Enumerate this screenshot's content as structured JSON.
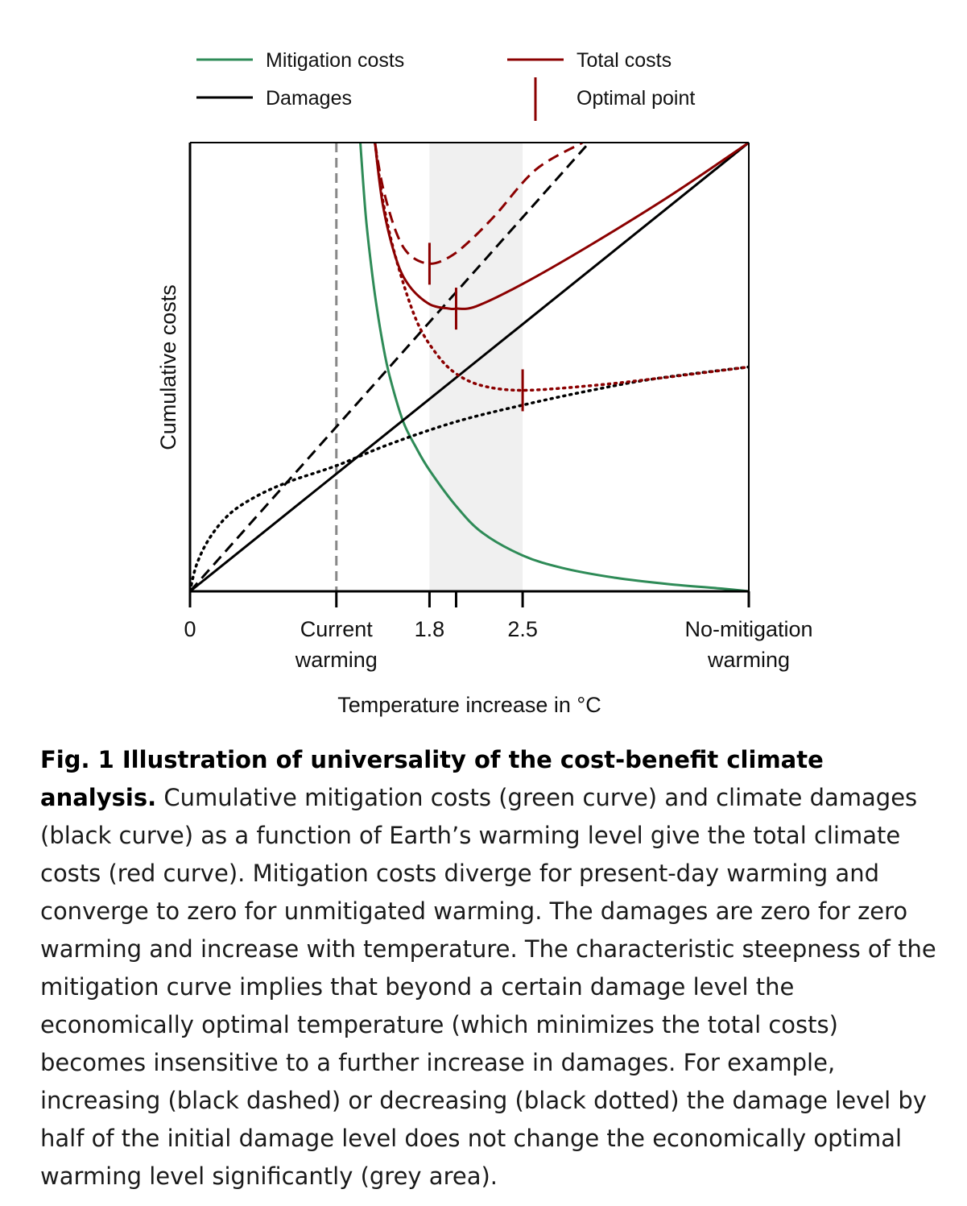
{
  "legend": {
    "mitigation": "Mitigation costs",
    "damages": "Damages",
    "total": "Total costs",
    "optimal": "Optimal point"
  },
  "chart_data": {
    "type": "line",
    "xlabel": "Temperature increase in °C",
    "ylabel": "Cumulative costs",
    "x_ticks": [
      {
        "x": 0,
        "label": "0"
      },
      {
        "x": 1.1,
        "label": "Current\nwarming"
      },
      {
        "x": 1.8,
        "label": "1.8"
      },
      {
        "x": 2.0,
        "label": ""
      },
      {
        "x": 2.5,
        "label": "2.5"
      },
      {
        "x": 4.2,
        "label": "No-mitigation\nwarming"
      }
    ],
    "xlim": [
      0,
      4.2
    ],
    "ylim": [
      0,
      1
    ],
    "current_warming": 1.1,
    "no_mitigation_warming": 4.2,
    "grey_band": [
      1.8,
      2.5
    ],
    "colors": {
      "mitigation": "#2e8b57",
      "damages": "#000000",
      "total": "#8b0000",
      "current_line": "#888888",
      "band": "#f0f0f0"
    },
    "series": [
      {
        "name": "Mitigation costs",
        "style": "solid",
        "color": "#2e8b57",
        "x": [
          1.28,
          1.32,
          1.36,
          1.4,
          1.45,
          1.5,
          1.6,
          1.7,
          1.8,
          2.0,
          2.2,
          2.5,
          2.8,
          3.2,
          3.6,
          4.0,
          4.2
        ],
        "y": [
          1.0,
          0.84,
          0.73,
          0.64,
          0.55,
          0.48,
          0.38,
          0.32,
          0.27,
          0.19,
          0.13,
          0.08,
          0.052,
          0.03,
          0.016,
          0.006,
          0.0
        ]
      },
      {
        "name": "Damages",
        "style": "solid",
        "color": "#000000",
        "x": [
          0,
          4.2
        ],
        "y": [
          0,
          1.0
        ]
      },
      {
        "style": "dashed",
        "color": "#000000",
        "x": [
          0,
          3.0
        ],
        "y": [
          0,
          1.0
        ]
      },
      {
        "style": "dotted",
        "color": "#000000",
        "x": [
          0.0,
          0.05,
          0.15,
          0.3,
          0.5,
          0.75,
          1.1,
          1.5,
          2.0,
          2.5,
          3.0,
          3.5,
          4.2
        ],
        "y": [
          0.0,
          0.06,
          0.12,
          0.173,
          0.212,
          0.245,
          0.28,
          0.328,
          0.378,
          0.415,
          0.447,
          0.474,
          0.5
        ]
      },
      {
        "name": "Total costs",
        "style": "solid",
        "color": "#8b0000",
        "x": [
          1.39,
          1.45,
          1.55,
          1.65,
          1.8,
          1.95,
          2.0,
          2.15,
          2.5,
          3.0,
          3.6,
          4.2
        ],
        "y": [
          1.0,
          0.86,
          0.74,
          0.68,
          0.64,
          0.63,
          0.63,
          0.635,
          0.685,
          0.77,
          0.88,
          1.0
        ]
      },
      {
        "style": "dashed",
        "color": "#8b0000",
        "x": [
          1.39,
          1.45,
          1.55,
          1.65,
          1.8,
          1.95,
          2.1,
          2.3,
          2.6,
          2.95
        ],
        "y": [
          1.0,
          0.9,
          0.8,
          0.75,
          0.73,
          0.745,
          0.78,
          0.84,
          0.94,
          1.0
        ]
      },
      {
        "style": "dotted",
        "color": "#8b0000",
        "x": [
          1.39,
          1.45,
          1.55,
          1.7,
          1.85,
          2.0,
          2.2,
          2.5,
          3.0,
          3.5,
          4.2
        ],
        "y": [
          1.0,
          0.87,
          0.74,
          0.605,
          0.53,
          0.485,
          0.458,
          0.448,
          0.458,
          0.474,
          0.5
        ]
      }
    ],
    "optimal_points": [
      {
        "x": 1.8,
        "y": 0.73
      },
      {
        "x": 2.0,
        "y": 0.63
      },
      {
        "x": 2.5,
        "y": 0.448
      }
    ]
  },
  "caption": {
    "title": "Fig. 1 Illustration of universality of the cost-benefit climate analysis.",
    "body": "Cumulative mitigation costs (green curve) and climate damages (black curve) as a function of Earth’s warming level give the total climate costs (red curve). Mitigation costs diverge for present-day warming and converge to zero for unmitigated warming. The damages are zero for zero warming and increase with temperature. The characteristic steepness of the mitigation curve implies that beyond a certain damage level the economically optimal temperature (which minimizes the total costs) becomes insensitive to a further increase in damages. For example, increasing (black dashed) or decreasing (black dotted) the damage level by half of the initial damage level does not change the economically optimal warming level significantly (grey area)."
  }
}
